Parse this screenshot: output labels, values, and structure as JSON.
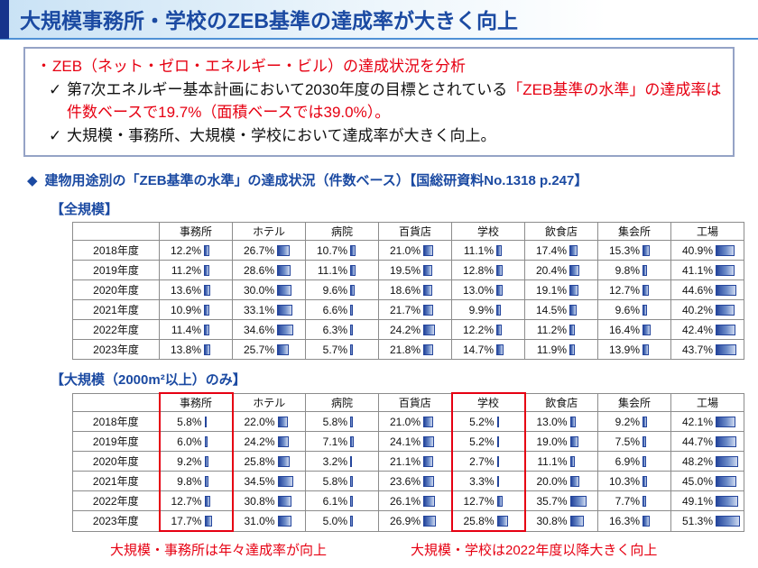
{
  "colors": {
    "title_blue": "#1b4aa2",
    "accent_navy": "#17348c",
    "underline_blue": "#4f91d6",
    "red": "#e60012",
    "box_border": "#95a3c6",
    "grid_gray": "#8c8c8c",
    "bar_start": "#24459c",
    "bar_end": "#cfdaf0",
    "title_bg_left": "#c9e2f5"
  },
  "header": {
    "title": "大規模事務所・学校のZEB基準の達成率が大きく向上"
  },
  "summary": {
    "bullet": "・",
    "line1": "ZEB（ネット・ゼロ・エネルギー・ビル）の達成状況を分析",
    "check": "✓",
    "line2_black": "第7次エネルギー基本計画において2030年度の目標とされている",
    "line2_red": "「ZEB基準の水準」の達成率は件数ベースで19.7%（面積ベースでは39.0%）。",
    "line3": "大規模・事務所、大規模・学校において達成率が大きく向上。"
  },
  "section": {
    "diamond": "◆",
    "heading": "建物用途別の「ZEB基準の水準」の達成状況（件数ベース）【国総研資料No.1318 p.247】"
  },
  "chart_data": [
    {
      "type": "table",
      "title": "【全規模】",
      "unit": "%",
      "bar_max": 52,
      "highlight_columns": [],
      "columns": [
        "事務所",
        "ホテル",
        "病院",
        "百貨店",
        "学校",
        "飲食店",
        "集会所",
        "工場"
      ],
      "rows": [
        {
          "label": "2018年度",
          "values": [
            12.2,
            26.7,
            10.7,
            21.0,
            11.1,
            17.4,
            15.3,
            40.9
          ]
        },
        {
          "label": "2019年度",
          "values": [
            11.2,
            28.6,
            11.1,
            19.5,
            12.8,
            20.4,
            9.8,
            41.1
          ]
        },
        {
          "label": "2020年度",
          "values": [
            13.6,
            30.0,
            9.6,
            18.6,
            13.0,
            19.1,
            12.7,
            44.6
          ]
        },
        {
          "label": "2021年度",
          "values": [
            10.9,
            33.1,
            6.6,
            21.7,
            9.9,
            14.5,
            9.6,
            40.2
          ]
        },
        {
          "label": "2022年度",
          "values": [
            11.4,
            34.6,
            6.3,
            24.2,
            12.2,
            11.2,
            16.4,
            42.4
          ]
        },
        {
          "label": "2023年度",
          "values": [
            13.8,
            25.7,
            5.7,
            21.8,
            14.7,
            11.9,
            13.9,
            43.7
          ]
        }
      ]
    },
    {
      "type": "table",
      "title": "【大規模（2000m²以上）のみ】",
      "unit": "%",
      "bar_max": 52,
      "highlight_columns": [
        0,
        4
      ],
      "columns": [
        "事務所",
        "ホテル",
        "病院",
        "百貨店",
        "学校",
        "飲食店",
        "集会所",
        "工場"
      ],
      "rows": [
        {
          "label": "2018年度",
          "values": [
            5.8,
            22.0,
            5.8,
            21.0,
            5.2,
            13.0,
            9.2,
            42.1
          ]
        },
        {
          "label": "2019年度",
          "values": [
            6.0,
            24.2,
            7.1,
            24.1,
            5.2,
            19.0,
            7.5,
            44.7
          ]
        },
        {
          "label": "2020年度",
          "values": [
            9.2,
            25.8,
            3.2,
            21.1,
            2.7,
            11.1,
            6.9,
            48.2
          ]
        },
        {
          "label": "2021年度",
          "values": [
            9.8,
            34.5,
            5.8,
            23.6,
            3.3,
            20.0,
            10.3,
            45.0
          ]
        },
        {
          "label": "2022年度",
          "values": [
            12.7,
            30.8,
            6.1,
            26.1,
            12.7,
            35.7,
            7.7,
            49.1
          ]
        },
        {
          "label": "2023年度",
          "values": [
            17.7,
            31.0,
            5.0,
            26.9,
            25.8,
            30.8,
            16.3,
            51.3
          ]
        }
      ]
    }
  ],
  "captions": [
    "大規模・事務所は年々達成率が向上",
    "大規模・学校は2022年度以降大きく向上"
  ]
}
